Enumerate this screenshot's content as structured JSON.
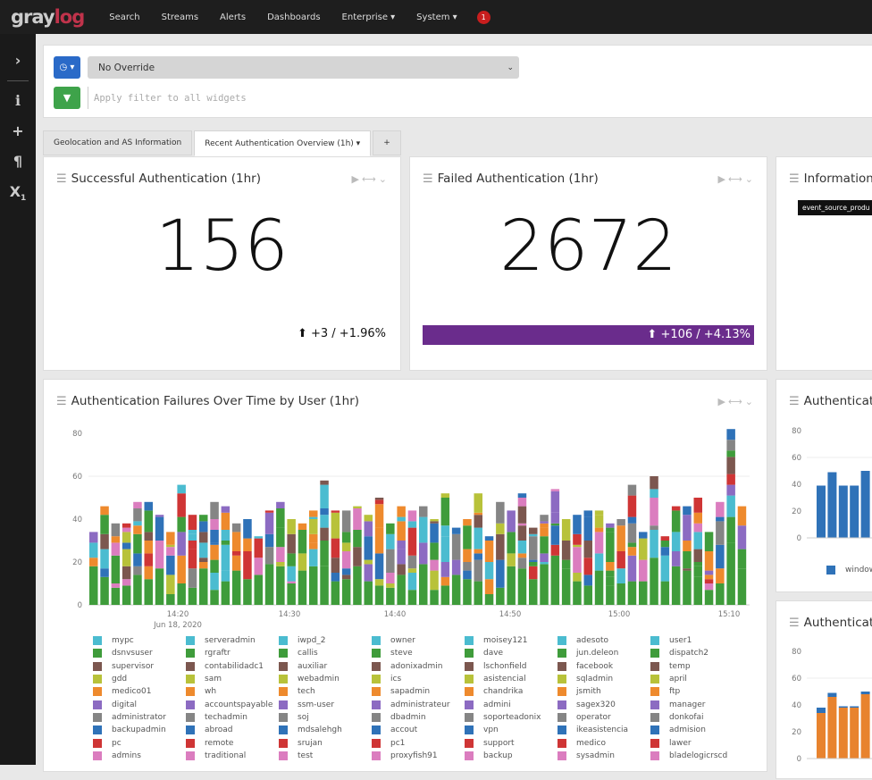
{
  "nav": {
    "logo": "graylog",
    "items": [
      "Search",
      "Streams",
      "Alerts",
      "Dashboards",
      "Enterprise ▾",
      "System ▾"
    ],
    "notification_count": "1"
  },
  "sidebar": {
    "icons": [
      "chevron-right-icon",
      "info-icon",
      "plus-icon",
      "paragraph-icon",
      "subscript-icon"
    ]
  },
  "filters": {
    "time_override": "No Override",
    "filter_placeholder": "Apply filter to all widgets"
  },
  "tabs": [
    {
      "label": "Geolocation and AS Information",
      "active": false
    },
    {
      "label": "Recent Authentication Overview (1h) ▾",
      "active": true
    },
    {
      "label": "+",
      "active": false
    }
  ],
  "widgets": {
    "successful": {
      "title": "Successful Authentication (1hr)",
      "value": "156",
      "delta": "+3 / +1.96%"
    },
    "failed": {
      "title": "Failed Authentication (1hr)",
      "value": "2672",
      "delta": "+106 / +4.13%",
      "delta_color": "#6a2c8c"
    },
    "information": {
      "title": "Information",
      "tooltip": "event_source_produ"
    },
    "failures_chart": {
      "title": "Authentication Failures Over Time by User (1hr)"
    },
    "auth_small1": {
      "title": "Authenticati",
      "legend": "window"
    },
    "auth_small2": {
      "title": "Authenticati"
    }
  },
  "chart_data": [
    {
      "type": "bar",
      "stacked": true,
      "title": "Authentication Failures Over Time by User (1hr)",
      "ylim": [
        0,
        80
      ],
      "yticks": [
        0,
        20,
        40,
        60,
        80
      ],
      "xtick_labels": [
        "14:20",
        "14:30",
        "14:40",
        "14:50",
        "15:00",
        "15:10"
      ],
      "date_label": "Jun 18, 2020",
      "x_start": "14:12",
      "x_end": "15:12",
      "interval": "1 minute",
      "totals": [
        34,
        46,
        38,
        38,
        48,
        48,
        42,
        34,
        56,
        42,
        42,
        48,
        46,
        38,
        40,
        32,
        44,
        48,
        40,
        38,
        44,
        58,
        44,
        44,
        46,
        42,
        50,
        38,
        46,
        44,
        46,
        40,
        52,
        36,
        40,
        52,
        32,
        48,
        44,
        52,
        36,
        42,
        54,
        40,
        42,
        44,
        44,
        38,
        40,
        56,
        34,
        60,
        32,
        46,
        46,
        50,
        34,
        48,
        82,
        46
      ],
      "series_names": [
        "mypc",
        "dsnvsuser",
        "supervisor",
        "gdd",
        "medico01",
        "digital",
        "administrator",
        "backupadmin",
        "pc",
        "admins",
        "serveradmin",
        "rgraftr",
        "contabilidadc1",
        "sam",
        "wh",
        "accountspayable",
        "techadmin",
        "abroad",
        "remote",
        "traditional",
        "iwpd_2",
        "callis",
        "auxiliar",
        "webadmin",
        "tech",
        "ssm-user",
        "soj",
        "mdsalehgh",
        "srujan",
        "test",
        "owner",
        "steve",
        "adonixadmin",
        "ics",
        "sapadmin",
        "administrateur",
        "dbadmin",
        "accout",
        "pc1",
        "proxyfish91",
        "moisey121",
        "dave",
        "lschonfield",
        "asistencial",
        "chandrika",
        "admini",
        "soporteadonix",
        "vpn",
        "support",
        "backup",
        "adesoto",
        "jun.deleon",
        "facebook",
        "sqladmin",
        "jsmith",
        "sagex320",
        "operator",
        "ikeasistencia",
        "medico",
        "sysadmin",
        "user1",
        "dispatch2",
        "temp",
        "april",
        "ftp",
        "manager",
        "donkofai",
        "admision",
        "lawer",
        "bladelogicrscd"
      ],
      "palette": [
        "#4bbcd0",
        "#3f9c3b",
        "#7c574f",
        "#b8c23a",
        "#ee8a2d",
        "#8c6bc2",
        "#858585",
        "#2f72b8",
        "#cf3535",
        "#db7dbf"
      ],
      "grid": true,
      "legend": "bottom"
    },
    {
      "type": "bar",
      "ylim": [
        0,
        80
      ],
      "yticks": [
        0,
        20,
        40,
        60,
        80
      ],
      "series": [
        {
          "name": "window",
          "values": [
            39,
            49,
            39,
            39,
            50
          ],
          "color": "#2f72b8"
        }
      ],
      "legend": "bottom"
    },
    {
      "type": "bar",
      "stacked": true,
      "ylim": [
        0,
        80
      ],
      "yticks": [
        0,
        20,
        40,
        60,
        80
      ],
      "series": [
        {
          "values": [
            34,
            46,
            38,
            38,
            48
          ],
          "color": "#e8832e"
        },
        {
          "values": [
            4,
            3,
            1,
            1,
            2
          ],
          "color": "#2f72b8"
        }
      ]
    }
  ]
}
